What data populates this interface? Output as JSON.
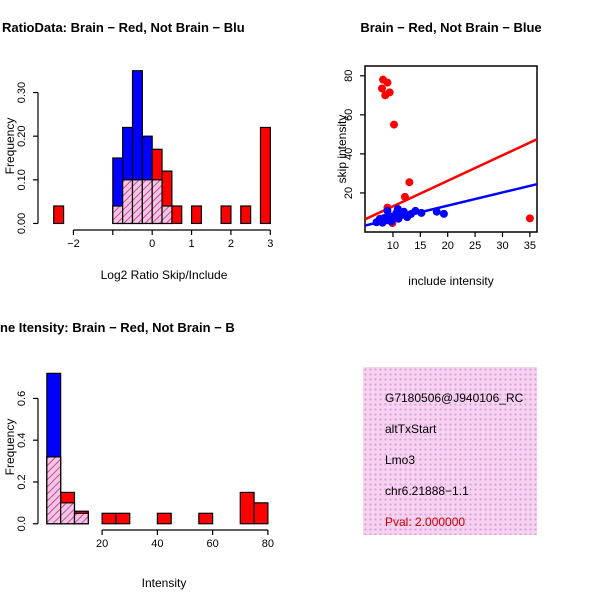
{
  "window": {
    "background": "#ffffff"
  },
  "colors": {
    "red": "#ff0000",
    "blue": "#0000ff",
    "overlap_line": "#c0399b",
    "overlap_bg": "#f5c6e2",
    "info_bg": "#f7d3f2",
    "info_dot": "#dd9ad6",
    "pval_red": "#cc0000",
    "axis": "#000000"
  },
  "chart_data": [
    {
      "id": "log-ratio-histogram",
      "type": "bar",
      "title": "RatioData: Brain − Red, Not Brain − Blu",
      "xlabel": "Log2 Ratio Skip/Include",
      "ylabel": "Frequency",
      "xlim": [
        -2.9,
        3.5
      ],
      "ylim": [
        -0.015,
        0.37
      ],
      "xticks": [
        {
          "v": -2,
          "label": "−2"
        },
        {
          "v": -1,
          "label": ""
        },
        {
          "v": 0,
          "label": "0"
        },
        {
          "v": 1,
          "label": "1"
        },
        {
          "v": 2,
          "label": "2"
        },
        {
          "v": 3,
          "label": "3"
        }
      ],
      "yticks": [
        {
          "v": 0,
          "label": "0.00"
        },
        {
          "v": 0.1,
          "label": "0.10"
        },
        {
          "v": 0.2,
          "label": "0.20"
        },
        {
          "v": 0.3,
          "label": "0.30"
        }
      ],
      "series_legend": {
        "red": "Brain",
        "blue": "Not Brain",
        "hatched": "overlap"
      },
      "bars": [
        {
          "x0": -2.5,
          "x1": -2.25,
          "h": 0.04,
          "color": "red"
        },
        {
          "x0": -1.0,
          "x1": -0.75,
          "h": 0.15,
          "color": "blue"
        },
        {
          "x0": -0.75,
          "x1": -0.5,
          "h": 0.22,
          "color": "blue"
        },
        {
          "x0": -0.5,
          "x1": -0.25,
          "h": 0.35,
          "color": "blue"
        },
        {
          "x0": -0.25,
          "x1": 0.0,
          "h": 0.2,
          "color": "blue"
        },
        {
          "x0": 0.0,
          "x1": 0.25,
          "h": 0.17,
          "color": "red"
        },
        {
          "x0": 0.25,
          "x1": 0.5,
          "h": 0.12,
          "color": "red"
        },
        {
          "x0": 0.5,
          "x1": 0.75,
          "h": 0.04,
          "color": "red"
        },
        {
          "x0": 1.0,
          "x1": 1.25,
          "h": 0.04,
          "color": "red"
        },
        {
          "x0": 1.75,
          "x1": 2.0,
          "h": 0.04,
          "color": "red"
        },
        {
          "x0": 2.25,
          "x1": 2.5,
          "h": 0.04,
          "color": "red"
        },
        {
          "x0": 2.75,
          "x1": 3.0,
          "h": 0.22,
          "color": "red"
        }
      ],
      "overlap_bars": [
        {
          "x0": -1.0,
          "x1": -0.75,
          "h": 0.04
        },
        {
          "x0": -0.75,
          "x1": -0.5,
          "h": 0.1
        },
        {
          "x0": -0.5,
          "x1": -0.25,
          "h": 0.1
        },
        {
          "x0": -0.25,
          "x1": 0.0,
          "h": 0.1
        },
        {
          "x0": 0.0,
          "x1": 0.25,
          "h": 0.1
        },
        {
          "x0": 0.25,
          "x1": 0.5,
          "h": 0.04
        }
      ]
    },
    {
      "id": "intensity-scatter",
      "type": "scatter",
      "title": "Brain − Red, Not Brain − Blue",
      "xlabel": "include intensity",
      "ylabel": "skip intensity",
      "xlim": [
        4.9,
        36.3
      ],
      "ylim": [
        0,
        85
      ],
      "xticks": [
        10,
        15,
        20,
        25,
        30,
        35
      ],
      "yticks": [
        20,
        40,
        60,
        80
      ],
      "series": [
        {
          "name": "Brain",
          "color": "red",
          "points": [
            [
              8.2,
              78
            ],
            [
              9,
              76.5
            ],
            [
              8,
              73.5
            ],
            [
              9.4,
              71.5
            ],
            [
              8.6,
              70
            ],
            [
              10.2,
              55
            ],
            [
              13,
              25.5
            ],
            [
              12.2,
              18
            ],
            [
              9,
              12.5
            ],
            [
              7.6,
              6.8
            ],
            [
              9.9,
              4.6
            ],
            [
              35,
              7
            ]
          ]
        },
        {
          "name": "Not Brain",
          "color": "blue",
          "points": [
            [
              7,
              5
            ],
            [
              7.6,
              6.5
            ],
            [
              8.1,
              4.8
            ],
            [
              8.4,
              7.2
            ],
            [
              8.9,
              6
            ],
            [
              9.3,
              8.3
            ],
            [
              9.7,
              5.3
            ],
            [
              10.2,
              7.8
            ],
            [
              10.6,
              9.6
            ],
            [
              11,
              6.8
            ],
            [
              11.5,
              8.6
            ],
            [
              12,
              10.4
            ],
            [
              12.6,
              7.6
            ],
            [
              13.3,
              9.2
            ],
            [
              14.1,
              10.8
            ],
            [
              15.2,
              9.8
            ],
            [
              18,
              10.4
            ],
            [
              19.3,
              9.3
            ],
            [
              9,
              10.8
            ],
            [
              10.9,
              11.8
            ]
          ]
        }
      ],
      "fit_lines": [
        {
          "color": "red",
          "x1": 4.9,
          "y1": 6.5,
          "x2": 36.3,
          "y2": 47.5
        },
        {
          "color": "blue",
          "x1": 4.9,
          "y1": 3.3,
          "x2": 36.3,
          "y2": 24.5
        }
      ]
    },
    {
      "id": "gene-intensity-histogram",
      "type": "bar",
      "title": "ne Itensity: Brain − Red, Not Brain − B",
      "xlabel": "Intensity",
      "ylabel": "Frequency",
      "xlim": [
        -3.2,
        88
      ],
      "ylim": [
        -0.03,
        0.76
      ],
      "xticks": [
        {
          "v": 20,
          "label": "20"
        },
        {
          "v": 40,
          "label": "40"
        },
        {
          "v": 60,
          "label": "60"
        },
        {
          "v": 80,
          "label": "80"
        }
      ],
      "yticks": [
        {
          "v": 0,
          "label": "0.0"
        },
        {
          "v": 0.2,
          "label": "0.2"
        },
        {
          "v": 0.4,
          "label": "0.4"
        },
        {
          "v": 0.6,
          "label": "0.6"
        }
      ],
      "series_legend": {
        "red": "Brain",
        "blue": "Not Brain",
        "hatched": "overlap"
      },
      "bars": [
        {
          "x0": 0,
          "x1": 5,
          "h": 0.72,
          "color": "blue"
        },
        {
          "x0": 5,
          "x1": 10,
          "h": 0.15,
          "color": "red"
        },
        {
          "x0": 10,
          "x1": 15,
          "h": 0.06,
          "color": "red"
        },
        {
          "x0": 20,
          "x1": 25,
          "h": 0.05,
          "color": "red"
        },
        {
          "x0": 25,
          "x1": 30,
          "h": 0.05,
          "color": "red"
        },
        {
          "x0": 40,
          "x1": 45,
          "h": 0.05,
          "color": "red"
        },
        {
          "x0": 55,
          "x1": 60,
          "h": 0.05,
          "color": "red"
        },
        {
          "x0": 70,
          "x1": 75,
          "h": 0.15,
          "color": "red"
        },
        {
          "x0": 75,
          "x1": 80,
          "h": 0.1,
          "color": "red"
        }
      ],
      "overlap_bars": [
        {
          "x0": 0,
          "x1": 5,
          "h": 0.32
        },
        {
          "x0": 5,
          "x1": 10,
          "h": 0.1
        },
        {
          "x0": 10,
          "x1": 15,
          "h": 0.05
        }
      ]
    }
  ],
  "info_panel": {
    "lines": [
      "G7180506@J940106_RC",
      "altTxStart",
      "Lmo3",
      "chr6.21888−1.1"
    ],
    "pval": "Pval: 2.000000"
  }
}
